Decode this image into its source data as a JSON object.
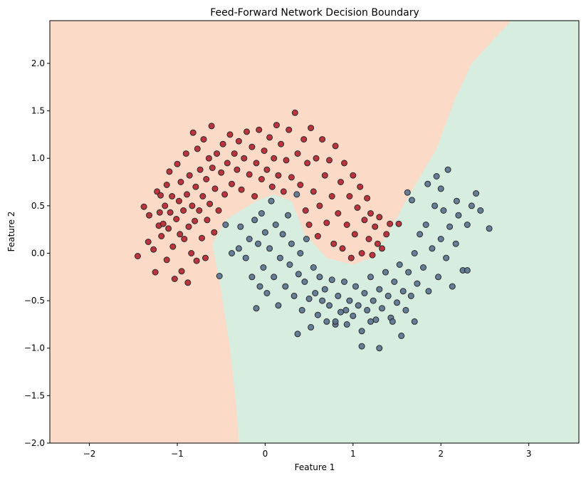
{
  "chart_data": {
    "type": "scatter",
    "title": "Feed-Forward Network Decision Boundary",
    "xlabel": "Feature 1",
    "ylabel": "Feature 2",
    "xlim": [
      -2.45,
      3.57
    ],
    "ylim": [
      -2.0,
      2.45
    ],
    "grid": false,
    "legend": "none",
    "x_ticks": [
      -2,
      -1,
      0,
      1,
      2,
      3
    ],
    "x_tick_labels": [
      "−2",
      "−1",
      "0",
      "1",
      "2",
      "3"
    ],
    "y_ticks": [
      -2.0,
      -1.5,
      -1.0,
      -0.5,
      0.0,
      0.5,
      1.0,
      1.5,
      2.0
    ],
    "y_tick_labels": [
      "−2.0",
      "−1.5",
      "−1.0",
      "−0.5",
      "0.0",
      "0.5",
      "1.0",
      "1.5",
      "2.0"
    ],
    "colors": {
      "class0_point": "#b2202e",
      "class1_point": "#5a7090",
      "point_edge": "#2b2b2b",
      "region0": "#fbdbc7",
      "region1": "#d6ede0"
    },
    "decision_boundary": [
      [
        -0.3,
        -2.0
      ],
      [
        -0.33,
        -1.6
      ],
      [
        -0.4,
        -1.0
      ],
      [
        -0.5,
        -0.4
      ],
      [
        -0.6,
        0.1
      ],
      [
        -0.45,
        0.35
      ],
      [
        -0.1,
        0.55
      ],
      [
        0.1,
        0.62
      ],
      [
        0.3,
        0.55
      ],
      [
        0.45,
        0.2
      ],
      [
        0.7,
        -0.05
      ],
      [
        1.0,
        -0.12
      ],
      [
        1.2,
        -0.05
      ],
      [
        1.4,
        0.2
      ],
      [
        1.6,
        0.55
      ],
      [
        1.95,
        1.1
      ],
      [
        2.15,
        1.6
      ],
      [
        2.35,
        2.0
      ],
      [
        2.8,
        2.45
      ]
    ],
    "series": [
      {
        "class": 0,
        "points": [
          [
            -1.45,
            -0.03
          ],
          [
            -1.38,
            0.49
          ],
          [
            -1.33,
            0.12
          ],
          [
            -1.32,
            0.4
          ],
          [
            -1.27,
            0.04
          ],
          [
            -1.25,
            -0.2
          ],
          [
            -1.23,
            0.65
          ],
          [
            -1.21,
            0.29
          ],
          [
            -1.2,
            0.43
          ],
          [
            -1.19,
            0.61
          ],
          [
            -1.18,
            0.18
          ],
          [
            -1.16,
            0.31
          ],
          [
            -1.14,
            0.5
          ],
          [
            -1.12,
            0.72
          ],
          [
            -1.12,
            -0.07
          ],
          [
            -1.1,
            0.26
          ],
          [
            -1.09,
            0.86
          ],
          [
            -1.08,
            0.43
          ],
          [
            -1.06,
            0.6
          ],
          [
            -1.05,
            0.07
          ],
          [
            -1.03,
            -0.27
          ],
          [
            -1.01,
            0.36
          ],
          [
            -1.0,
            0.94
          ],
          [
            -0.98,
            0.55
          ],
          [
            -0.97,
            0.2
          ],
          [
            -0.96,
            0.75
          ],
          [
            -0.95,
            -0.19
          ],
          [
            -0.93,
            0.45
          ],
          [
            -0.92,
            0.15
          ],
          [
            -0.9,
            1.05
          ],
          [
            -0.89,
            0.62
          ],
          [
            -0.88,
            -0.31
          ],
          [
            -0.87,
            0.28
          ],
          [
            -0.86,
            0.82
          ],
          [
            -0.84,
            0.0
          ],
          [
            -0.83,
            0.5
          ],
          [
            -0.82,
            1.27
          ],
          [
            -0.8,
            0.34
          ],
          [
            -0.79,
            0.7
          ],
          [
            -0.78,
            -0.08
          ],
          [
            -0.77,
            1.1
          ],
          [
            -0.75,
            0.45
          ],
          [
            -0.74,
            0.88
          ],
          [
            -0.72,
            0.16
          ],
          [
            -0.71,
            0.6
          ],
          [
            -0.7,
            1.2
          ],
          [
            -0.68,
            -0.05
          ],
          [
            -0.67,
            0.78
          ],
          [
            -0.66,
            0.35
          ],
          [
            -0.64,
            1.0
          ],
          [
            -0.63,
            0.52
          ],
          [
            -0.61,
            1.34
          ],
          [
            -0.6,
            0.9
          ],
          [
            -0.58,
            0.22
          ],
          [
            -0.57,
            0.68
          ],
          [
            -0.55,
            1.05
          ],
          [
            -0.53,
            0.45
          ],
          [
            -0.5,
            0.85
          ],
          [
            -0.48,
            1.15
          ],
          [
            -0.46,
            0.62
          ],
          [
            -0.43,
            0.95
          ],
          [
            -0.4,
            1.25
          ],
          [
            -0.38,
            0.73
          ],
          [
            -0.35,
            1.05
          ],
          [
            -0.32,
            0.88
          ],
          [
            -0.3,
            1.18
          ],
          [
            -0.27,
            0.67
          ],
          [
            -0.24,
            1.0
          ],
          [
            -0.21,
            1.28
          ],
          [
            -0.18,
            0.83
          ],
          [
            -0.15,
            1.12
          ],
          [
            -0.12,
            0.6
          ],
          [
            -0.1,
            0.95
          ],
          [
            -0.07,
            1.3
          ],
          [
            -0.04,
            0.78
          ],
          [
            -0.01,
            1.08
          ],
          [
            0.02,
            0.88
          ],
          [
            0.05,
            1.22
          ],
          [
            0.08,
            0.7
          ],
          [
            0.1,
            1.0
          ],
          [
            0.13,
            1.35
          ],
          [
            0.15,
            0.82
          ],
          [
            0.18,
            1.15
          ],
          [
            0.21,
            0.65
          ],
          [
            0.24,
            0.98
          ],
          [
            0.27,
            1.3
          ],
          [
            0.3,
            0.8
          ],
          [
            0.34,
            1.48
          ],
          [
            0.37,
            1.05
          ],
          [
            0.4,
            0.72
          ],
          [
            0.44,
            1.2
          ],
          [
            0.46,
            0.45
          ],
          [
            0.48,
            0.95
          ],
          [
            0.5,
            0.3
          ],
          [
            0.52,
            1.32
          ],
          [
            0.55,
            0.65
          ],
          [
            0.58,
            1.0
          ],
          [
            0.6,
            0.18
          ],
          [
            0.62,
            0.5
          ],
          [
            0.65,
            1.2
          ],
          [
            0.68,
            0.82
          ],
          [
            0.7,
            0.32
          ],
          [
            0.73,
            0.98
          ],
          [
            0.76,
            0.6
          ],
          [
            0.78,
            0.1
          ],
          [
            0.8,
            1.13
          ],
          [
            0.83,
            0.42
          ],
          [
            0.86,
            0.75
          ],
          [
            0.88,
            0.05
          ],
          [
            0.9,
            0.95
          ],
          [
            0.93,
            0.3
          ],
          [
            0.96,
            0.6
          ],
          [
            0.98,
            -0.05
          ],
          [
            1.0,
            0.82
          ],
          [
            1.02,
            0.2
          ],
          [
            1.05,
            0.48
          ],
          [
            1.08,
            0.7
          ],
          [
            1.1,
            0.0
          ],
          [
            1.13,
            0.35
          ],
          [
            1.16,
            0.58
          ],
          [
            1.18,
            0.15
          ],
          [
            1.2,
            0.42
          ],
          [
            1.22,
            -0.02
          ],
          [
            1.25,
            0.28
          ],
          [
            1.28,
            0.1
          ],
          [
            1.3,
            0.38
          ],
          [
            1.33,
            0.05
          ],
          [
            1.38,
            0.2
          ],
          [
            1.42,
            0.31
          ],
          [
            1.52,
            0.31
          ]
        ]
      },
      {
        "class": 1,
        "points": [
          [
            -0.52,
            -0.24
          ],
          [
            -0.45,
            0.3
          ],
          [
            -0.38,
            0.0
          ],
          [
            -0.3,
            0.05
          ],
          [
            -0.28,
            0.28
          ],
          [
            -0.22,
            -0.05
          ],
          [
            -0.18,
            0.15
          ],
          [
            -0.15,
            -0.25
          ],
          [
            -0.12,
            0.35
          ],
          [
            -0.1,
            -0.58
          ],
          [
            -0.08,
            0.1
          ],
          [
            -0.06,
            -0.35
          ],
          [
            -0.04,
            0.42
          ],
          [
            -0.02,
            -0.15
          ],
          [
            0.0,
            0.22
          ],
          [
            0.02,
            -0.42
          ],
          [
            0.05,
            0.05
          ],
          [
            0.07,
            0.55
          ],
          [
            0.1,
            -0.25
          ],
          [
            0.12,
            0.3
          ],
          [
            0.15,
            -0.55
          ],
          [
            0.17,
            -0.05
          ],
          [
            0.2,
            0.2
          ],
          [
            0.23,
            -0.35
          ],
          [
            0.26,
            0.4
          ],
          [
            0.28,
            -0.12
          ],
          [
            0.3,
            0.1
          ],
          [
            0.33,
            -0.45
          ],
          [
            0.36,
            0.62
          ],
          [
            0.38,
            -0.22
          ],
          [
            0.4,
            0.0
          ],
          [
            0.42,
            -0.6
          ],
          [
            0.45,
            -0.3
          ],
          [
            0.47,
            0.15
          ],
          [
            0.5,
            -0.48
          ],
          [
            0.52,
            -0.78
          ],
          [
            0.55,
            -0.15
          ],
          [
            0.57,
            -0.42
          ],
          [
            0.6,
            -0.65
          ],
          [
            0.62,
            -0.25
          ],
          [
            0.65,
            -0.5
          ],
          [
            0.68,
            -0.38
          ],
          [
            0.7,
            -0.72
          ],
          [
            0.73,
            -0.55
          ],
          [
            0.76,
            -0.28
          ],
          [
            0.8,
            -0.75
          ],
          [
            0.83,
            -0.45
          ],
          [
            0.86,
            -0.62
          ],
          [
            0.9,
            -0.3
          ],
          [
            0.93,
            -0.75
          ],
          [
            0.96,
            -0.5
          ],
          [
            1.0,
            -0.66
          ],
          [
            1.03,
            -0.35
          ],
          [
            1.06,
            -0.55
          ],
          [
            1.1,
            -0.82
          ],
          [
            1.13,
            -0.42
          ],
          [
            1.16,
            -0.6
          ],
          [
            1.2,
            -0.25
          ],
          [
            1.23,
            -0.5
          ],
          [
            1.26,
            -0.7
          ],
          [
            1.3,
            -0.38
          ],
          [
            1.33,
            -0.58
          ],
          [
            1.37,
            -0.2
          ],
          [
            1.4,
            -0.45
          ],
          [
            1.43,
            -0.68
          ],
          [
            1.47,
            -0.3
          ],
          [
            1.5,
            -0.52
          ],
          [
            1.53,
            -0.12
          ],
          [
            1.57,
            -0.4
          ],
          [
            1.6,
            -0.6
          ],
          [
            1.63,
            -0.2
          ],
          [
            1.66,
            -0.45
          ],
          [
            1.7,
            0.0
          ],
          [
            1.73,
            -0.32
          ],
          [
            1.76,
            0.2
          ],
          [
            1.8,
            -0.15
          ],
          [
            1.83,
            0.3
          ],
          [
            1.86,
            -0.4
          ],
          [
            1.9,
            0.05
          ],
          [
            1.93,
            0.5
          ],
          [
            1.97,
            -0.25
          ],
          [
            2.0,
            0.15
          ],
          [
            2.03,
            0.45
          ],
          [
            2.06,
            -0.05
          ],
          [
            2.1,
            0.28
          ],
          [
            2.13,
            -0.35
          ],
          [
            2.17,
            0.1
          ],
          [
            2.2,
            0.4
          ],
          [
            2.25,
            -0.18
          ],
          [
            2.3,
            0.3
          ],
          [
            2.35,
            0.5
          ],
          [
            2.4,
            0.63
          ],
          [
            2.45,
            0.45
          ],
          [
            2.55,
            0.26
          ],
          [
            1.62,
            0.64
          ],
          [
            1.67,
            0.56
          ],
          [
            1.85,
            0.73
          ],
          [
            1.95,
            0.81
          ],
          [
            2.08,
            0.88
          ],
          [
            2.0,
            0.68
          ],
          [
            2.18,
            0.55
          ],
          [
            2.3,
            -0.18
          ],
          [
            1.1,
            -0.98
          ],
          [
            1.3,
            -1.0
          ],
          [
            0.37,
            -0.85
          ],
          [
            0.8,
            -0.72
          ],
          [
            1.55,
            -0.87
          ],
          [
            1.45,
            -0.72
          ],
          [
            1.7,
            -0.72
          ],
          [
            1.2,
            -0.72
          ],
          [
            0.92,
            -0.6
          ]
        ]
      }
    ]
  }
}
